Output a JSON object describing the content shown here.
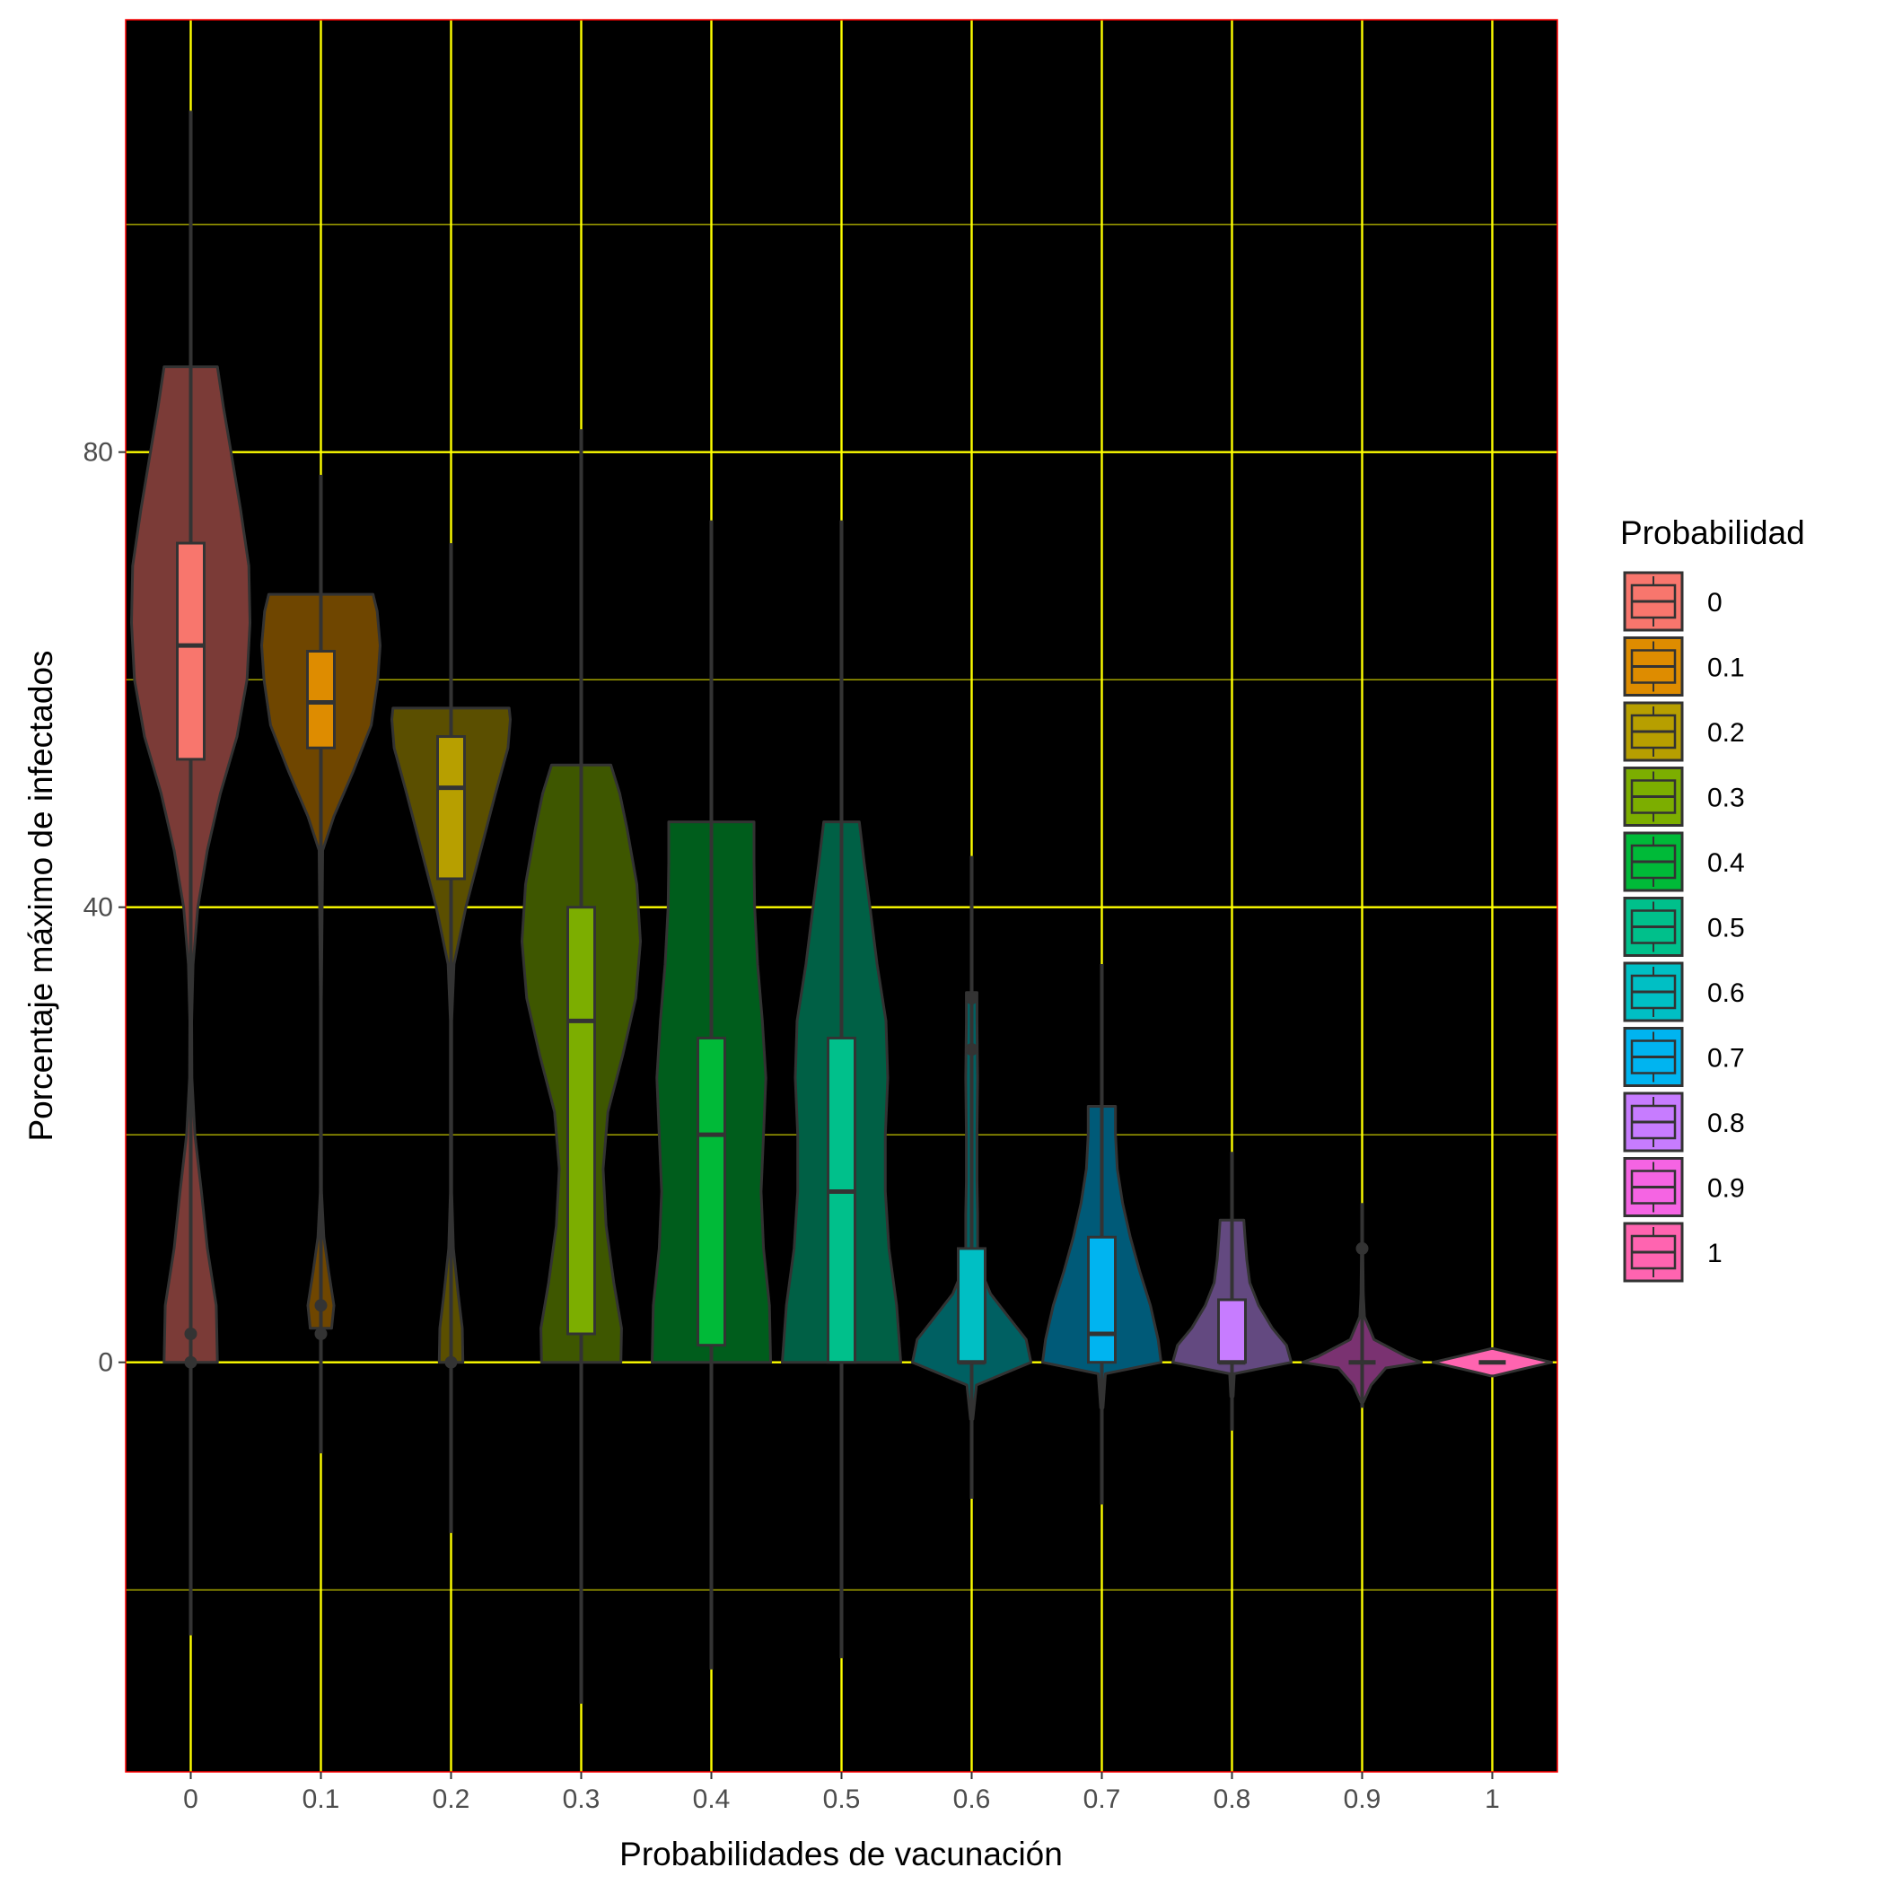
{
  "chart_data": {
    "type": "violin",
    "title": "",
    "xlabel": "Probabilidades de vacunación",
    "ylabel": "Porcentaje máximo de infectados",
    "categories": [
      "0",
      "0.1",
      "0.2",
      "0.3",
      "0.4",
      "0.5",
      "0.6",
      "0.7",
      "0.8",
      "0.9",
      "1"
    ],
    "y_ticks": [
      "0",
      "40",
      "80"
    ],
    "y_tick_values": [
      0,
      40,
      80
    ],
    "ylim": [
      -36,
      118
    ],
    "grid": true,
    "legend": {
      "title": "Probabilidad",
      "position": "right",
      "labels": [
        "0",
        "0.1",
        "0.2",
        "0.3",
        "0.4",
        "0.5",
        "0.6",
        "0.7",
        "0.8",
        "0.9",
        "1"
      ]
    },
    "colors": {
      "panel_background": "#000000",
      "panel_border": "#ff0000",
      "grid_major": "#ffff00",
      "grid_minor": "#ffff00",
      "outline": "#333333",
      "series": [
        "#F8766D",
        "#DE8C00",
        "#B79F00",
        "#7CAE00",
        "#00BA38",
        "#00C08B",
        "#00BFC4",
        "#00B4F0",
        "#C77CFF",
        "#F564E3",
        "#FF64B0"
      ],
      "violin_fill": [
        "#7B3B37",
        "#6F4600",
        "#5B4F00",
        "#3E5700",
        "#005D1C",
        "#006045",
        "#006062",
        "#005A78",
        "#634980",
        "#7A3271",
        "#FF64B0"
      ]
    },
    "series": [
      {
        "category": "0",
        "whisker": [
          -24,
          110
        ],
        "box": {
          "q1": 53,
          "median": 63,
          "q3": 72
        },
        "violin_max": 87.5,
        "violin": [
          [
            0,
            0.45
          ],
          [
            5,
            0.43
          ],
          [
            10,
            0.28
          ],
          [
            15,
            0.18
          ],
          [
            20,
            0.07
          ],
          [
            25,
            0.02
          ],
          [
            30,
            0.015
          ],
          [
            35,
            0.04
          ],
          [
            40,
            0.12
          ],
          [
            45,
            0.28
          ],
          [
            50,
            0.5
          ],
          [
            55,
            0.78
          ],
          [
            60,
            0.95
          ],
          [
            65,
            1.0
          ],
          [
            70,
            0.98
          ],
          [
            75,
            0.84
          ],
          [
            80,
            0.68
          ],
          [
            84,
            0.55
          ],
          [
            87.5,
            0.45
          ]
        ],
        "outliers": [
          2.5,
          0
        ]
      },
      {
        "category": "0.1",
        "whisker": [
          -8,
          78
        ],
        "box": {
          "q1": 54,
          "median": 58,
          "q3": 62.5
        },
        "violin_max": 67.5,
        "violin": [
          [
            3,
            0.18
          ],
          [
            5,
            0.22
          ],
          [
            8,
            0.13
          ],
          [
            11,
            0.05
          ],
          [
            15,
            0.01
          ],
          [
            30,
            0.005
          ],
          [
            45,
            0.03
          ],
          [
            48,
            0.22
          ],
          [
            52,
            0.55
          ],
          [
            56,
            0.85
          ],
          [
            60,
            0.96
          ],
          [
            63,
            1.0
          ],
          [
            66,
            0.95
          ],
          [
            67.5,
            0.88
          ]
        ],
        "outliers": [
          5,
          2.5
        ]
      },
      {
        "category": "0.2",
        "whisker": [
          -15,
          72
        ],
        "box": {
          "q1": 42.5,
          "median": 50.5,
          "q3": 55
        },
        "violin_max": 57.5,
        "violin": [
          [
            0,
            0.2
          ],
          [
            3,
            0.19
          ],
          [
            6,
            0.12
          ],
          [
            10,
            0.04
          ],
          [
            15,
            0.01
          ],
          [
            30,
            0.01
          ],
          [
            35,
            0.05
          ],
          [
            40,
            0.25
          ],
          [
            45,
            0.5
          ],
          [
            50,
            0.75
          ],
          [
            54,
            0.96
          ],
          [
            56.5,
            1.0
          ],
          [
            57.5,
            0.98
          ]
        ],
        "outliers": [
          0
        ]
      },
      {
        "category": "0.3",
        "whisker": [
          -30,
          82
        ],
        "box": {
          "q1": 2.5,
          "median": 30,
          "q3": 40
        },
        "violin_max": 52.5,
        "violin": [
          [
            0,
            0.67
          ],
          [
            3,
            0.68
          ],
          [
            7,
            0.55
          ],
          [
            12,
            0.42
          ],
          [
            17,
            0.37
          ],
          [
            22,
            0.45
          ],
          [
            27,
            0.7
          ],
          [
            32,
            0.92
          ],
          [
            37,
            1.0
          ],
          [
            42,
            0.94
          ],
          [
            47,
            0.77
          ],
          [
            50,
            0.65
          ],
          [
            52.5,
            0.5
          ]
        ],
        "outliers": []
      },
      {
        "category": "0.4",
        "whisker": [
          -27,
          74
        ],
        "box": {
          "q1": 1.5,
          "median": 20,
          "q3": 28.5
        },
        "violin_max": 47.5,
        "violin": [
          [
            0,
            1.0
          ],
          [
            5,
            0.98
          ],
          [
            10,
            0.88
          ],
          [
            15,
            0.84
          ],
          [
            20,
            0.88
          ],
          [
            25,
            0.92
          ],
          [
            30,
            0.86
          ],
          [
            35,
            0.78
          ],
          [
            40,
            0.73
          ],
          [
            44,
            0.72
          ],
          [
            47.5,
            0.72
          ]
        ],
        "outliers": []
      },
      {
        "category": "0.5",
        "whisker": [
          -26,
          74
        ],
        "box": {
          "q1": 0,
          "median": 15,
          "q3": 28.5
        },
        "violin_max": 47.5,
        "violin": [
          [
            0,
            1.0
          ],
          [
            5,
            0.93
          ],
          [
            10,
            0.8
          ],
          [
            15,
            0.74
          ],
          [
            20,
            0.74
          ],
          [
            25,
            0.78
          ],
          [
            30,
            0.75
          ],
          [
            35,
            0.6
          ],
          [
            40,
            0.48
          ],
          [
            44,
            0.38
          ],
          [
            47.5,
            0.3
          ]
        ],
        "outliers": []
      },
      {
        "category": "0.6",
        "whisker": [
          -12,
          44.5
        ],
        "box": {
          "q1": 0,
          "median": 0,
          "q3": 10
        },
        "violin_max": 32.5,
        "violin": [
          [
            -5,
            0.02
          ],
          [
            -2,
            0.08
          ],
          [
            0,
            1.0
          ],
          [
            2,
            0.92
          ],
          [
            4,
            0.62
          ],
          [
            6,
            0.32
          ],
          [
            8,
            0.16
          ],
          [
            10,
            0.1
          ],
          [
            13,
            0.1
          ],
          [
            16,
            0.09
          ],
          [
            20,
            0.09
          ],
          [
            25,
            0.1
          ],
          [
            30,
            0.09
          ],
          [
            32.5,
            0.09
          ]
        ],
        "outliers": [
          27.5,
          32
        ]
      },
      {
        "category": "0.7",
        "whisker": [
          -12.5,
          35
        ],
        "box": {
          "q1": 0,
          "median": 2.5,
          "q3": 11
        },
        "violin_max": 22.5,
        "violin": [
          [
            -4,
            0.02
          ],
          [
            -1,
            0.06
          ],
          [
            0,
            1.0
          ],
          [
            2,
            0.95
          ],
          [
            5,
            0.82
          ],
          [
            8,
            0.64
          ],
          [
            11,
            0.48
          ],
          [
            14,
            0.35
          ],
          [
            17,
            0.26
          ],
          [
            20,
            0.23
          ],
          [
            22.5,
            0.23
          ]
        ],
        "outliers": []
      },
      {
        "category": "0.8",
        "whisker": [
          -6,
          18.5
        ],
        "box": {
          "q1": 0,
          "median": 0,
          "q3": 5.5
        },
        "violin_max": 12.5,
        "violin": [
          [
            -3,
            0.02
          ],
          [
            -1,
            0.04
          ],
          [
            0,
            1.0
          ],
          [
            1.5,
            0.92
          ],
          [
            3,
            0.68
          ],
          [
            5,
            0.45
          ],
          [
            7,
            0.3
          ],
          [
            9,
            0.25
          ],
          [
            11,
            0.22
          ],
          [
            12.5,
            0.2
          ]
        ],
        "outliers": []
      },
      {
        "category": "0.9",
        "whisker": [
          -4,
          14
        ],
        "box": {
          "q1": 0,
          "median": 0,
          "q3": 0
        },
        "violin_max": 10,
        "violin": [
          [
            -3.5,
            0.02
          ],
          [
            -2,
            0.15
          ],
          [
            -0.5,
            0.4
          ],
          [
            0,
            1.0
          ],
          [
            0.5,
            0.75
          ],
          [
            2,
            0.2
          ],
          [
            4,
            0.04
          ],
          [
            6,
            0.02
          ],
          [
            8,
            0.015
          ],
          [
            10,
            0.01
          ]
        ],
        "outliers": [
          10
        ]
      },
      {
        "category": "1",
        "whisker": [
          0,
          0
        ],
        "box": {
          "q1": 0,
          "median": 0,
          "q3": 0
        },
        "violin_max": 1.2,
        "violin": [
          [
            -1.2,
            0.02
          ],
          [
            -0.6,
            0.5
          ],
          [
            0,
            1.0
          ],
          [
            0.6,
            0.5
          ],
          [
            1.2,
            0.02
          ]
        ],
        "outliers": []
      }
    ]
  }
}
